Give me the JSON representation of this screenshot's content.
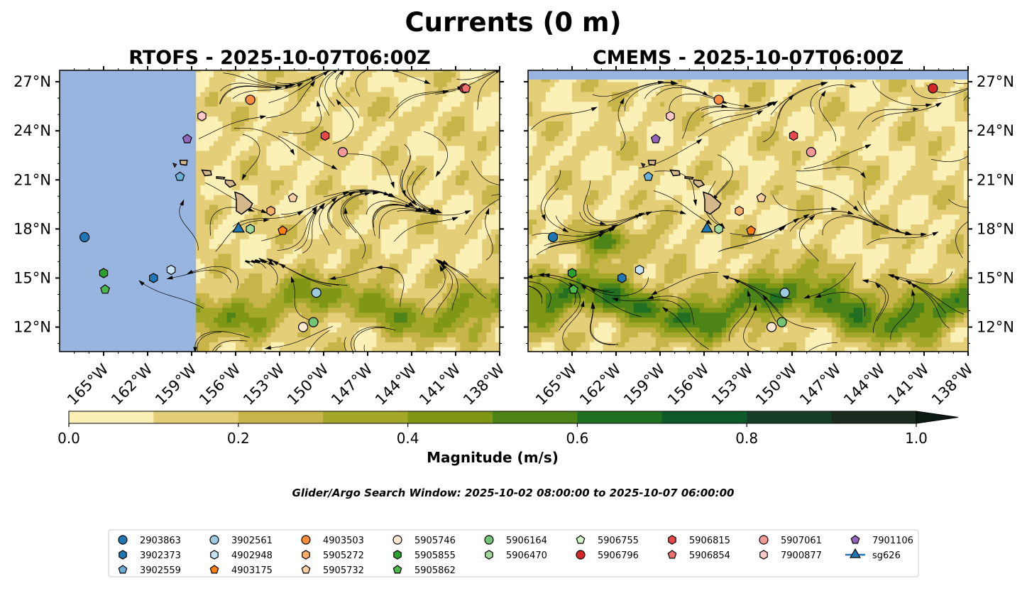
{
  "figure": {
    "suptitle": "Currents (0 m)",
    "search_window": "Glider/Argo Search Window: 2025-10-02 08:00:00 to 2025-10-07 06:00:00"
  },
  "chart_data": [
    {
      "type": "heatmap",
      "title": "RTOFS - 2025-10-07T06:00Z",
      "xlim": [
        -168,
        -138
      ],
      "ylim": [
        10.5,
        27.7
      ],
      "x_ticks": [
        -165,
        -162,
        -159,
        -156,
        -153,
        -150,
        -147,
        -144,
        -141,
        -138
      ],
      "x_tick_labels": [
        "165°W",
        "162°W",
        "159°W",
        "156°W",
        "153°W",
        "150°W",
        "147°W",
        "144°W",
        "141°W",
        "138°W"
      ],
      "y_ticks": [
        12,
        15,
        18,
        21,
        24,
        27
      ],
      "y_tick_labels": [
        "12°N",
        "15°N",
        "18°N",
        "21°N",
        "24°N",
        "27°N"
      ],
      "y_axis_side": "left",
      "data_coverage_west_lon": -158.7,
      "variable": "current magnitude (m/s) with streamlines",
      "markers": [
        {
          "id": "2903863",
          "lon": -166.3,
          "lat": 17.5
        },
        {
          "id": "5905855",
          "lon": -165.0,
          "lat": 15.3
        },
        {
          "id": "5905862",
          "lon": -164.9,
          "lat": 14.3
        },
        {
          "id": "3902373",
          "lon": -161.6,
          "lat": 15.0
        },
        {
          "id": "4902948",
          "lon": -160.4,
          "lat": 15.5
        },
        {
          "id": "3902559",
          "lon": -159.8,
          "lat": 21.2
        },
        {
          "id": "7901106",
          "lon": -159.3,
          "lat": 23.5
        },
        {
          "id": "7900877",
          "lon": -158.3,
          "lat": 24.9
        },
        {
          "id": "sg626",
          "lon": -155.8,
          "lat": 18.0
        },
        {
          "id": "4903503",
          "lon": -155.0,
          "lat": 25.9
        },
        {
          "id": "5906470",
          "lon": -155.0,
          "lat": 18.0
        },
        {
          "id": "5905272",
          "lon": -153.6,
          "lat": 19.1
        },
        {
          "id": "4903175",
          "lon": -152.8,
          "lat": 17.9
        },
        {
          "id": "5905732",
          "lon": -152.1,
          "lat": 19.9
        },
        {
          "id": "5906815",
          "lon": -149.9,
          "lat": 23.7
        },
        {
          "id": "5907061",
          "lon": -148.7,
          "lat": 22.7
        },
        {
          "id": "3902561",
          "lon": -150.5,
          "lat": 14.1
        },
        {
          "id": "5906164",
          "lon": -150.7,
          "lat": 12.3
        },
        {
          "id": "5905746",
          "lon": -151.4,
          "lat": 12.0
        },
        {
          "id": "5906796",
          "lon": -140.4,
          "lat": 26.6
        },
        {
          "id": "5906854",
          "lon": -140.3,
          "lat": 26.6
        }
      ]
    },
    {
      "type": "heatmap",
      "title": "CMEMS - 2025-10-07T06:00Z",
      "xlim": [
        -168,
        -138
      ],
      "ylim": [
        10.5,
        27.7
      ],
      "x_ticks": [
        -165,
        -162,
        -159,
        -156,
        -153,
        -150,
        -147,
        -144,
        -141,
        -138
      ],
      "x_tick_labels": [
        "165°W",
        "162°W",
        "159°W",
        "156°W",
        "153°W",
        "150°W",
        "147°W",
        "144°W",
        "141°W",
        "138°W"
      ],
      "y_ticks": [
        12,
        15,
        18,
        21,
        24,
        27
      ],
      "y_tick_labels": [
        "12°N",
        "15°N",
        "18°N",
        "21°N",
        "24°N",
        "27°N"
      ],
      "y_axis_side": "right",
      "data_coverage_north_lat": 27.1,
      "variable": "current magnitude (m/s) with streamlines",
      "markers": [
        {
          "id": "2903863",
          "lon": -166.3,
          "lat": 17.5
        },
        {
          "id": "5905855",
          "lon": -165.0,
          "lat": 15.3
        },
        {
          "id": "5905862",
          "lon": -164.9,
          "lat": 14.3
        },
        {
          "id": "3902373",
          "lon": -161.6,
          "lat": 15.0
        },
        {
          "id": "4902948",
          "lon": -160.4,
          "lat": 15.5
        },
        {
          "id": "3902559",
          "lon": -159.8,
          "lat": 21.2
        },
        {
          "id": "7901106",
          "lon": -159.3,
          "lat": 23.5
        },
        {
          "id": "7900877",
          "lon": -158.3,
          "lat": 24.9
        },
        {
          "id": "sg626",
          "lon": -155.8,
          "lat": 18.0
        },
        {
          "id": "4903503",
          "lon": -155.0,
          "lat": 25.9
        },
        {
          "id": "5906470",
          "lon": -155.0,
          "lat": 18.0
        },
        {
          "id": "5905272",
          "lon": -153.6,
          "lat": 19.1
        },
        {
          "id": "4903175",
          "lon": -152.8,
          "lat": 17.9
        },
        {
          "id": "5905732",
          "lon": -152.1,
          "lat": 19.9
        },
        {
          "id": "5906815",
          "lon": -149.9,
          "lat": 23.7
        },
        {
          "id": "5907061",
          "lon": -148.7,
          "lat": 22.7
        },
        {
          "id": "3902561",
          "lon": -150.5,
          "lat": 14.1
        },
        {
          "id": "5906164",
          "lon": -150.7,
          "lat": 12.3
        },
        {
          "id": "5905746",
          "lon": -151.4,
          "lat": 12.0
        },
        {
          "id": "5906796",
          "lon": -140.4,
          "lat": 26.6
        }
      ]
    }
  ],
  "colorbar": {
    "label": "Magnitude (m/s)",
    "min": 0.0,
    "max": 1.0,
    "extend": "max",
    "ticks": [
      0.0,
      0.2,
      0.4,
      0.6,
      0.8,
      1.0
    ],
    "tick_labels": [
      "0.0",
      "0.2",
      "0.4",
      "0.6",
      "0.8",
      "1.0"
    ],
    "levels": [
      0.0,
      0.1,
      0.2,
      0.3,
      0.4,
      0.5,
      0.6,
      0.7,
      0.8,
      0.9,
      1.0
    ],
    "colors": [
      "#fbf0b5",
      "#e4cf78",
      "#c8b54a",
      "#a3a72a",
      "#7f9616",
      "#4d8418",
      "#216f22",
      "#0f5a2b",
      "#173f28",
      "#1c2b20",
      "#0d1a12"
    ]
  },
  "map_colors": {
    "ocean_nodata": "#98b5e0",
    "land": "#d4b88c",
    "streamline": "#000000"
  },
  "legend": {
    "columns": [
      [
        {
          "id": "2903863",
          "label": "2903863",
          "shape": "circle",
          "color": "#1f77b4"
        },
        {
          "id": "3902373",
          "label": "3902373",
          "shape": "hexagon",
          "color": "#1f77b4"
        },
        {
          "id": "3902559",
          "label": "3902559",
          "shape": "pentagon",
          "color": "#6baed6"
        }
      ],
      [
        {
          "id": "3902561",
          "label": "3902561",
          "shape": "circle",
          "color": "#9ecae1"
        },
        {
          "id": "4902948",
          "label": "4902948",
          "shape": "hexagon",
          "color": "#c6e4f5"
        },
        {
          "id": "4903175",
          "label": "4903175",
          "shape": "pentagon",
          "color": "#ff7f0e"
        }
      ],
      [
        {
          "id": "4903503",
          "label": "4903503",
          "shape": "circle",
          "color": "#fd8d3c"
        },
        {
          "id": "5905272",
          "label": "5905272",
          "shape": "hexagon",
          "color": "#fdae6b"
        },
        {
          "id": "5905732",
          "label": "5905732",
          "shape": "pentagon",
          "color": "#fdd0a2"
        }
      ],
      [
        {
          "id": "5905746",
          "label": "5905746",
          "shape": "circle",
          "color": "#ffe8d0"
        },
        {
          "id": "5905855",
          "label": "5905855",
          "shape": "hexagon",
          "color": "#2ca02c"
        },
        {
          "id": "5905862",
          "label": "5905862",
          "shape": "pentagon",
          "color": "#4cb84c"
        }
      ],
      [
        {
          "id": "5906164",
          "label": "5906164",
          "shape": "circle",
          "color": "#74c476"
        },
        {
          "id": "5906470",
          "label": "5906470",
          "shape": "hexagon",
          "color": "#a1d99b"
        }
      ],
      [
        {
          "id": "5906755",
          "label": "5906755",
          "shape": "pentagon",
          "color": "#d4f7c8"
        },
        {
          "id": "5906796",
          "label": "5906796",
          "shape": "circle",
          "color": "#d62728"
        }
      ],
      [
        {
          "id": "5906815",
          "label": "5906815",
          "shape": "hexagon",
          "color": "#e8484a"
        },
        {
          "id": "5906854",
          "label": "5906854",
          "shape": "pentagon",
          "color": "#f07070"
        }
      ],
      [
        {
          "id": "5907061",
          "label": "5907061",
          "shape": "circle",
          "color": "#f4999a"
        },
        {
          "id": "7900877",
          "label": "7900877",
          "shape": "hexagon",
          "color": "#fcc8c8"
        }
      ],
      [
        {
          "id": "7901106",
          "label": "7901106",
          "shape": "pentagon",
          "color": "#9467bd"
        },
        {
          "id": "sg626",
          "label": "sg626",
          "shape": "triangle",
          "color": "#1f77b4",
          "line": true
        }
      ]
    ]
  }
}
